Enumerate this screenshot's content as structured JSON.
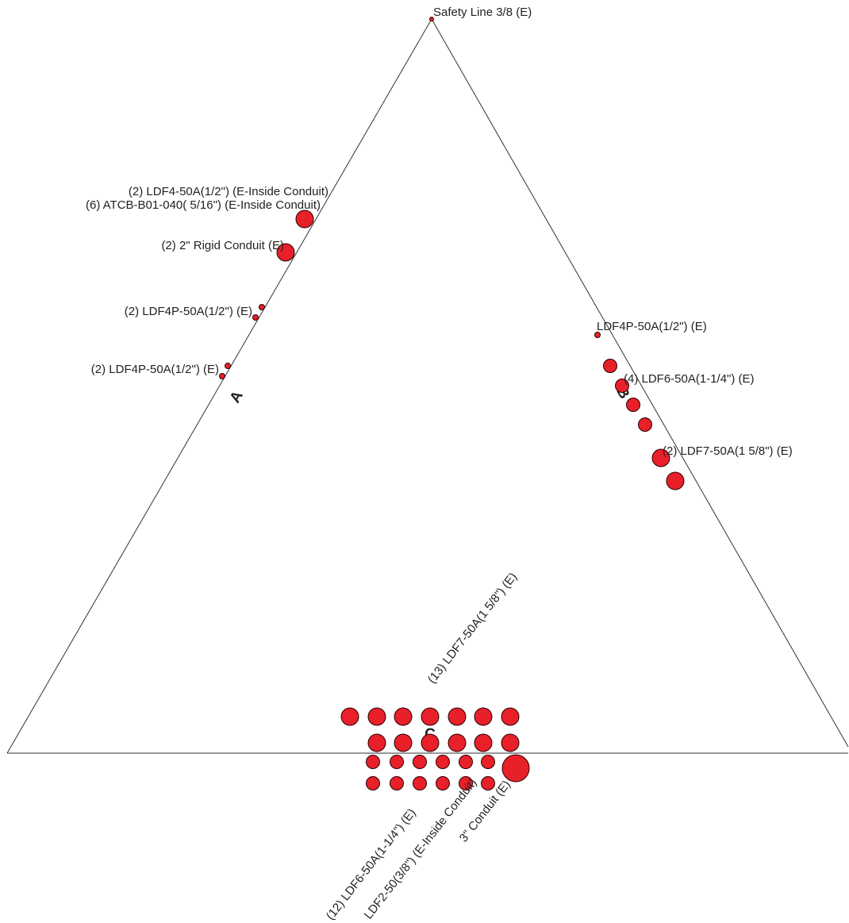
{
  "diagram": {
    "tower_faces": {
      "a": "A",
      "b": "B",
      "c": "C"
    },
    "labels": {
      "top": "Safety Line 3/8 (E)",
      "a1": "(2) LDF4-50A(1/2\") (E-Inside Conduit)",
      "a2": "(6) ATCB-B01-040( 5/16\") (E-Inside Conduit)",
      "a3": "(2) 2\" Rigid Conduit (E)",
      "a4": "(2) LDF4P-50A(1/2\") (E)",
      "a5": "(2) LDF4P-50A(1/2\") (E)",
      "b1": "LDF4P-50A(1/2\") (E)",
      "b2": "(4) LDF6-50A(1-1/4\") (E)",
      "b3": "(2) LDF7-50A(1 5/8\") (E)",
      "c1": "(13) LDF7-50A(1 5/8\") (E)",
      "c2": "(12) LDF6-50A(1-1/4\") (E)",
      "c3": "LDF2-50(3/8\") (E-Inside Conduit)",
      "c4": "3\" Conduit (E)"
    },
    "colors": {
      "line_fill": "#e8202a",
      "outline": "#2a0000"
    }
  }
}
